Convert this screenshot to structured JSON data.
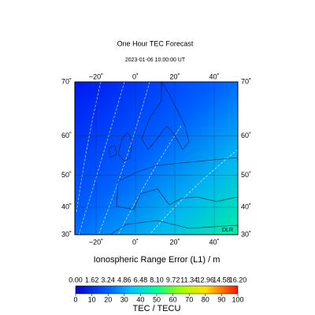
{
  "title": "One Hour TEC Forecast",
  "subtitle": "2023-01-06  10:00:00 UT",
  "map": {
    "lon_lim": [
      -30.8,
      52
    ],
    "lat_lim": [
      30,
      70
    ],
    "lon_ticks": [
      {
        "value": -20,
        "label": "−20˚"
      },
      {
        "value": 0,
        "label": "0˚"
      },
      {
        "value": 20,
        "label": "20˚"
      },
      {
        "value": 40,
        "label": "40˚"
      }
    ],
    "lat_ticks": [
      {
        "value": 70,
        "label": "70˚"
      },
      {
        "value": 60,
        "label": "60˚"
      },
      {
        "value": 50,
        "label": "50˚"
      },
      {
        "value": 40,
        "label": "40˚"
      },
      {
        "value": 30,
        "label": "30˚"
      }
    ],
    "credit": "DLR"
  },
  "colorbar": {
    "title": "Ionospheric Range Error (L1) / m",
    "range_labels": [
      "0.00",
      "1.62",
      "3.24",
      "4.86",
      "6.48",
      "8.10",
      "9.72",
      "11.34",
      "12.96",
      "14.58",
      "16.20"
    ],
    "lim": [
      0,
      100
    ],
    "ticks": [
      0,
      10,
      20,
      30,
      40,
      50,
      60,
      70,
      80,
      90,
      100
    ],
    "label": "TEC / TECU"
  }
}
